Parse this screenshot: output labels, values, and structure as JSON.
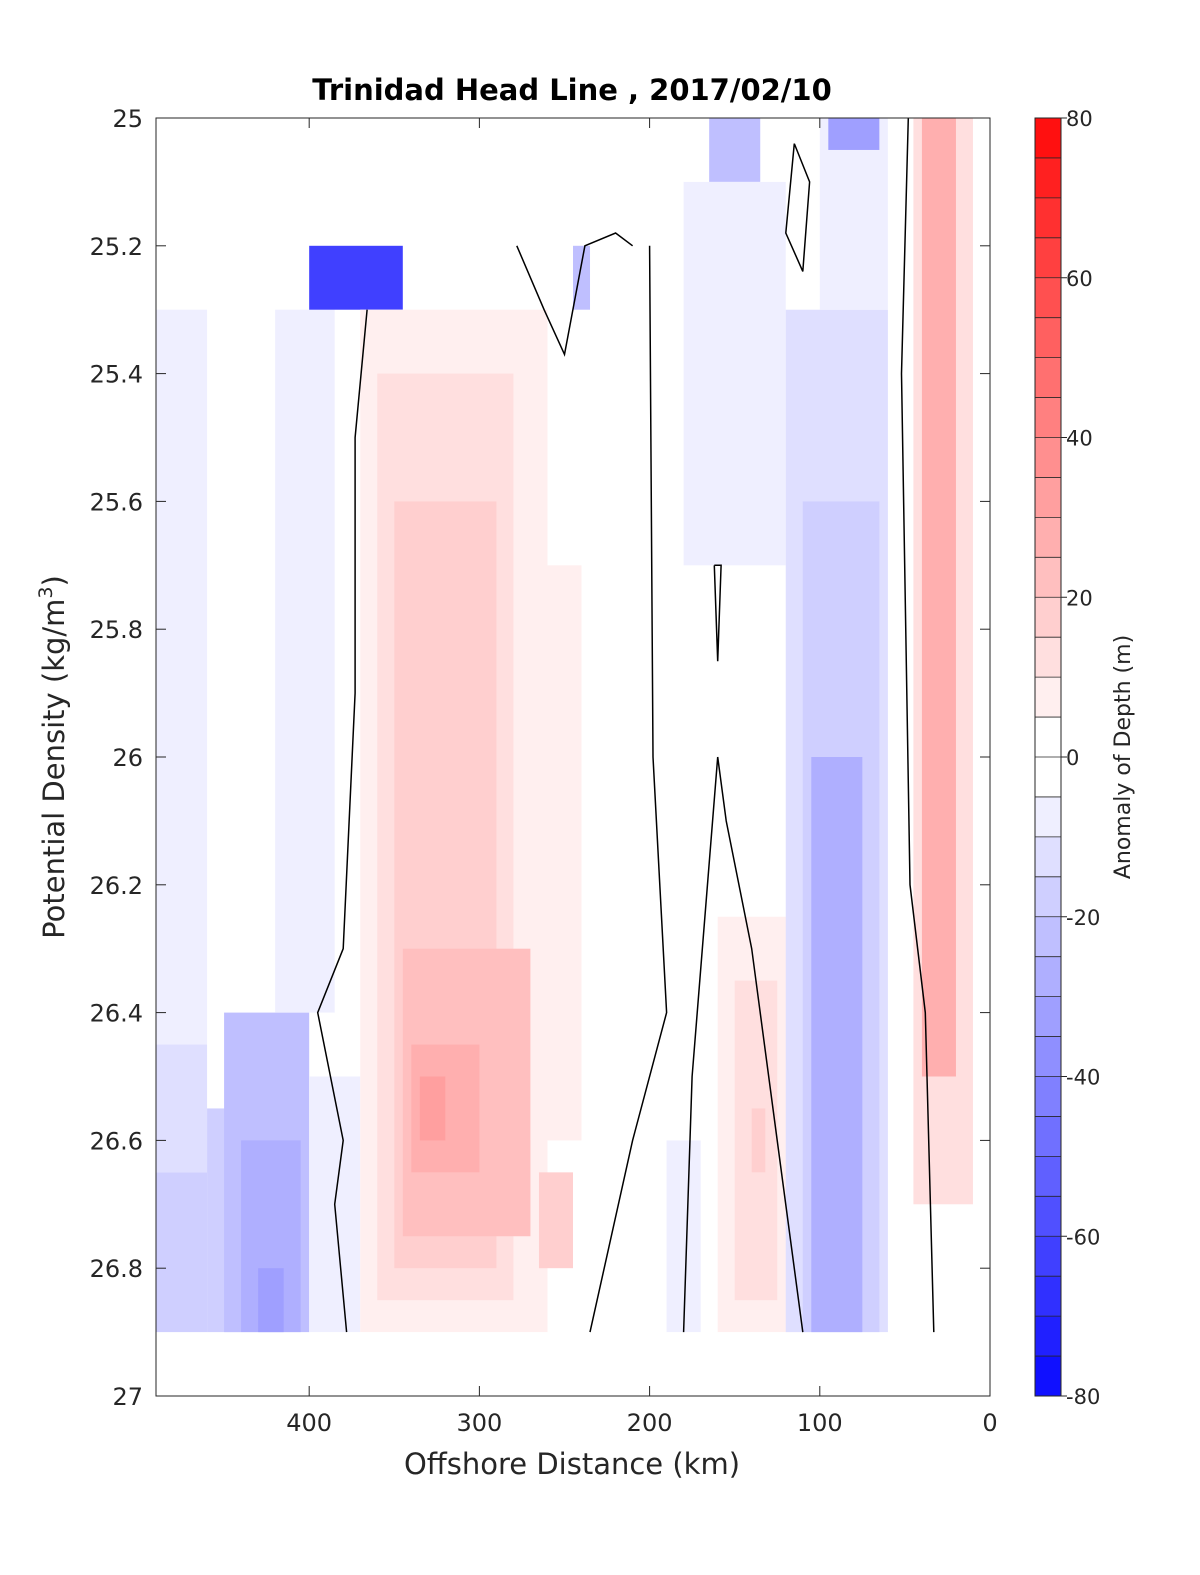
{
  "chart_data": {
    "type": "heatmap",
    "title": "Trinidad Head Line , 2017/02/10",
    "xlabel": "Offshore Distance (km)",
    "ylabel_main": "Potential Density (kg/m",
    "ylabel_sup": "3",
    "ylabel_close": ")",
    "xlim": [
      490,
      0
    ],
    "x_reversed": true,
    "ylim": [
      27,
      25
    ],
    "y_reversed": true,
    "x_ticks": [
      400,
      300,
      200,
      100,
      0
    ],
    "x_tick_labels": [
      "400",
      "300",
      "200",
      "100",
      "0"
    ],
    "y_ticks": [
      25,
      25.2,
      25.4,
      25.6,
      25.8,
      26,
      26.2,
      26.4,
      26.6,
      26.8,
      27
    ],
    "y_tick_labels": [
      "25",
      "25.2",
      "25.4",
      "25.6",
      "25.8",
      "26",
      "26.2",
      "26.4",
      "26.6",
      "26.8",
      "27"
    ],
    "grid": false,
    "colorbar": {
      "label": "Anomaly of Depth (m)",
      "range": [
        -80,
        80
      ],
      "step": 5,
      "ticks": [
        80,
        60,
        40,
        20,
        0,
        -20,
        -40,
        -60,
        -80
      ],
      "tick_labels": [
        "80",
        "60",
        "40",
        "20",
        "0",
        "-20",
        "-40",
        "-60",
        "-80"
      ],
      "low_color": "#0000ff",
      "mid_color": "#ffffff",
      "high_color": "#ff0000"
    },
    "zero_contour_color": "#000000",
    "bands": [
      {
        "x_from": 490,
        "x_to": 460,
        "y_from": 25.3,
        "y_to": 26.45,
        "value": -5
      },
      {
        "x_from": 490,
        "x_to": 460,
        "y_from": 26.45,
        "y_to": 26.65,
        "value": -10
      },
      {
        "x_from": 490,
        "x_to": 460,
        "y_from": 26.65,
        "y_to": 26.9,
        "value": -15
      },
      {
        "x_from": 460,
        "x_to": 440,
        "y_from": 26.55,
        "y_to": 26.9,
        "value": -18
      },
      {
        "x_from": 450,
        "x_to": 400,
        "y_from": 26.4,
        "y_to": 26.9,
        "value": -20
      },
      {
        "x_from": 440,
        "x_to": 405,
        "y_from": 26.6,
        "y_to": 26.9,
        "value": -28
      },
      {
        "x_from": 430,
        "x_to": 415,
        "y_from": 26.8,
        "y_to": 26.9,
        "value": -33
      },
      {
        "x_from": 420,
        "x_to": 385,
        "y_from": 25.3,
        "y_to": 26.4,
        "value": -5
      },
      {
        "x_from": 400,
        "x_to": 370,
        "y_from": 26.5,
        "y_to": 26.9,
        "value": -8
      },
      {
        "x_from": 400,
        "x_to": 345,
        "y_from": 25.2,
        "y_to": 25.3,
        "value": -60
      },
      {
        "x_from": 370,
        "x_to": 260,
        "y_from": 25.3,
        "y_to": 26.9,
        "value": 5
      },
      {
        "x_from": 360,
        "x_to": 280,
        "y_from": 25.4,
        "y_to": 26.85,
        "value": 10
      },
      {
        "x_from": 350,
        "x_to": 290,
        "y_from": 25.6,
        "y_to": 26.8,
        "value": 15
      },
      {
        "x_from": 345,
        "x_to": 270,
        "y_from": 26.3,
        "y_to": 26.75,
        "value": 20
      },
      {
        "x_from": 340,
        "x_to": 300,
        "y_from": 26.45,
        "y_to": 26.65,
        "value": 25
      },
      {
        "x_from": 335,
        "x_to": 320,
        "y_from": 26.5,
        "y_to": 26.6,
        "value": 30
      },
      {
        "x_from": 270,
        "x_to": 240,
        "y_from": 25.7,
        "y_to": 26.6,
        "value": 5
      },
      {
        "x_from": 265,
        "x_to": 245,
        "y_from": 26.65,
        "y_to": 26.8,
        "value": 15
      },
      {
        "x_from": 245,
        "x_to": 235,
        "y_from": 25.2,
        "y_to": 25.3,
        "value": -20
      },
      {
        "x_from": 190,
        "x_to": 170,
        "y_from": 26.6,
        "y_to": 26.9,
        "value": -8
      },
      {
        "x_from": 160,
        "x_to": 110,
        "y_from": 26.25,
        "y_to": 26.9,
        "value": 5
      },
      {
        "x_from": 150,
        "x_to": 125,
        "y_from": 26.35,
        "y_to": 26.85,
        "value": 10
      },
      {
        "x_from": 140,
        "x_to": 132,
        "y_from": 26.55,
        "y_to": 26.65,
        "value": 15
      },
      {
        "x_from": 165,
        "x_to": 135,
        "y_from": 25,
        "y_to": 25.1,
        "value": -20
      },
      {
        "x_from": 180,
        "x_to": 120,
        "y_from": 25.1,
        "y_to": 25.7,
        "value": -5
      },
      {
        "x_from": 120,
        "x_to": 60,
        "y_from": 25.3,
        "y_to": 26.9,
        "value": -10
      },
      {
        "x_from": 110,
        "x_to": 65,
        "y_from": 25.6,
        "y_to": 26.9,
        "value": -18
      },
      {
        "x_from": 105,
        "x_to": 75,
        "y_from": 26.0,
        "y_to": 26.9,
        "value": -25
      },
      {
        "x_from": 100,
        "x_to": 60,
        "y_from": 25,
        "y_to": 25.3,
        "value": -8
      },
      {
        "x_from": 95,
        "x_to": 65,
        "y_from": 25,
        "y_to": 25.05,
        "value": -30
      },
      {
        "x_from": 45,
        "x_to": 10,
        "y_from": 25,
        "y_to": 26.7,
        "value": 10
      },
      {
        "x_from": 40,
        "x_to": 20,
        "y_from": 25,
        "y_to": 26.5,
        "value": 25
      }
    ],
    "zero_contours": [
      [
        [
          366,
          25.3
        ],
        [
          373,
          25.5
        ],
        [
          373,
          25.9
        ],
        [
          380,
          26.3
        ],
        [
          395,
          26.4
        ],
        [
          380,
          26.6
        ],
        [
          385,
          26.7
        ],
        [
          378,
          26.9
        ]
      ],
      [
        [
          278,
          25.2
        ],
        [
          262,
          25.3
        ],
        [
          250,
          25.37
        ],
        [
          238,
          25.2
        ],
        [
          220,
          25.18
        ],
        [
          210,
          25.2
        ]
      ],
      [
        [
          200,
          25.2
        ],
        [
          198,
          26.0
        ],
        [
          190,
          26.4
        ],
        [
          210,
          26.6
        ],
        [
          235,
          26.9
        ]
      ],
      [
        [
          162,
          25.7
        ],
        [
          160,
          25.85
        ],
        [
          158,
          25.7
        ],
        [
          162,
          25.7
        ]
      ],
      [
        [
          180,
          26.9
        ],
        [
          175,
          26.5
        ],
        [
          160,
          26.0
        ],
        [
          155,
          26.1
        ],
        [
          140,
          26.3
        ],
        [
          125,
          26.6
        ],
        [
          110,
          26.9
        ]
      ],
      [
        [
          115,
          25.04
        ],
        [
          106,
          25.1
        ],
        [
          110,
          25.24
        ],
        [
          120,
          25.18
        ],
        [
          115,
          25.04
        ]
      ],
      [
        [
          48,
          25
        ],
        [
          52,
          25.4
        ],
        [
          47,
          26.2
        ],
        [
          38,
          26.4
        ],
        [
          33,
          26.9
        ]
      ]
    ]
  }
}
